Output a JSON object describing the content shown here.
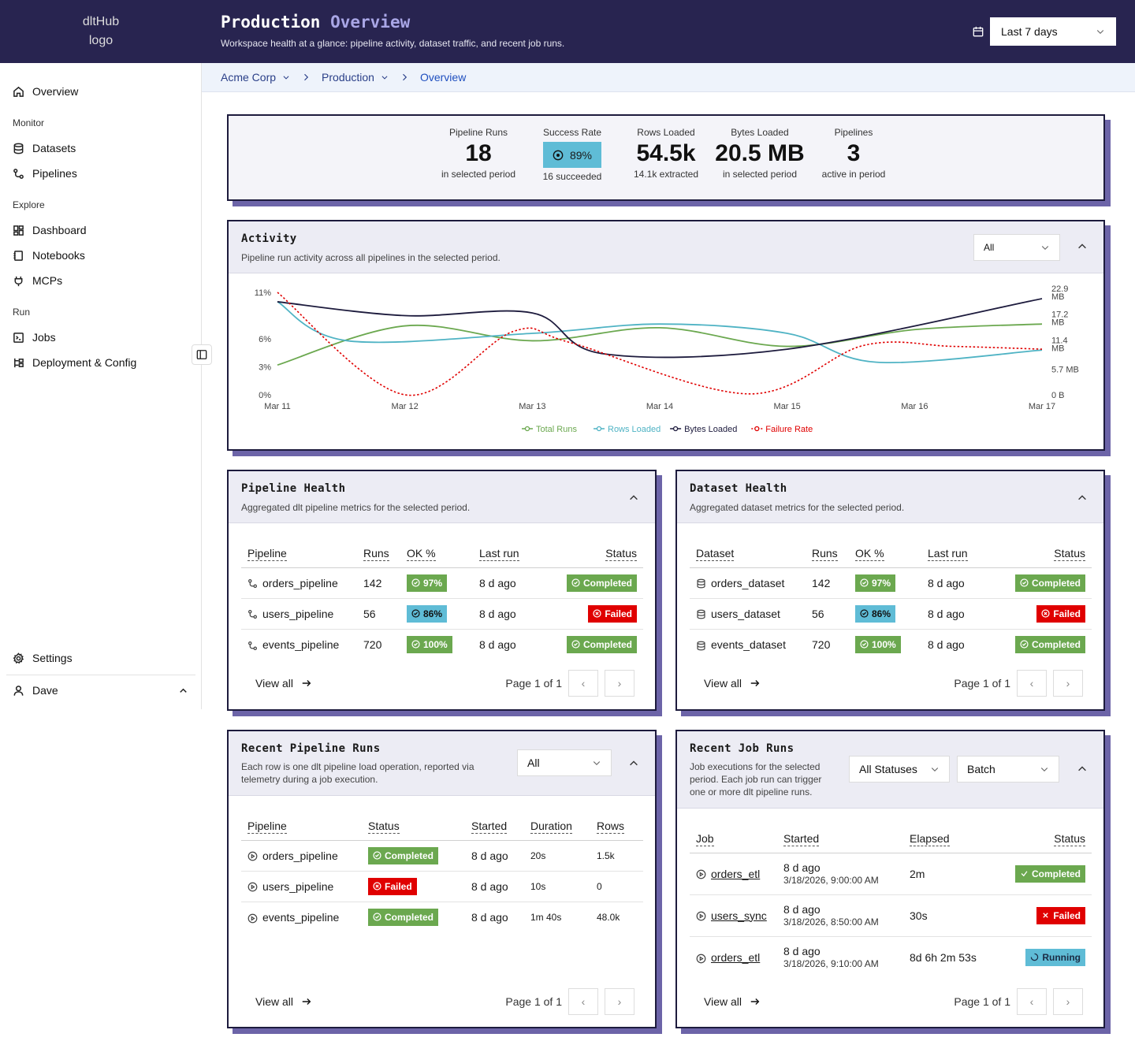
{
  "sidebar": {
    "logo_alt": "dltHub logo",
    "items": [
      {
        "label": "Overview",
        "icon": "home-icon"
      },
      {
        "label": "Datasets",
        "icon": "database-icon"
      },
      {
        "label": "Pipelines",
        "icon": "pipeline-icon"
      },
      {
        "label": "Dashboard",
        "icon": "grid-icon"
      },
      {
        "label": "Notebooks",
        "icon": "notebook-icon"
      },
      {
        "label": "MCPs",
        "icon": "plug-icon"
      },
      {
        "label": "Jobs",
        "icon": "terminal-icon"
      },
      {
        "label": "Deployment & Config",
        "icon": "deploy-icon"
      }
    ],
    "sections": {
      "monitor": "Monitor",
      "explore": "Explore",
      "run": "Run"
    },
    "settings": "Settings",
    "user": "Dave"
  },
  "header": {
    "title_main": "Production",
    "title_accent": "Overview",
    "subtitle": "Workspace health at a glance: pipeline activity, dataset traffic, and recent job runs.",
    "range": "Last 7 days"
  },
  "breadcrumb": {
    "org": "Acme Corp",
    "env": "Production",
    "page": "Overview"
  },
  "kpis": {
    "runs": {
      "label": "Pipeline Runs",
      "value": "18",
      "sub": "in selected period"
    },
    "success": {
      "label": "Success Rate",
      "value": "89%",
      "sub": "16 succeeded"
    },
    "rows": {
      "label": "Rows Loaded",
      "value": "54.5k",
      "sub": "14.1k extracted"
    },
    "bytes": {
      "label": "Bytes Loaded",
      "value": "20.5 MB",
      "sub": "in selected period"
    },
    "pipelines": {
      "label": "Pipelines",
      "value": "3",
      "sub": "active in period"
    }
  },
  "activity": {
    "title": "Activity",
    "subtitle": "Pipeline run activity across all pipelines in the selected period.",
    "filter": "All"
  },
  "chart_data": {
    "type": "line",
    "x": [
      "Mar 11",
      "Mar 12",
      "Mar 13",
      "Mar 14",
      "Mar 15",
      "Mar 16",
      "Mar 17"
    ],
    "left_ticks": [
      "0%",
      "3%",
      "6%",
      "11%"
    ],
    "right_ticks": [
      "0 B",
      "5.7 MB",
      "11.4 MB",
      "17.2 MB",
      "22.9 MB"
    ],
    "ylim_left": [
      0,
      11
    ],
    "ylim_right": [
      0,
      22.9
    ],
    "legend_position": "bottom-center",
    "series": [
      {
        "name": "Total Runs",
        "color": "#6ba84f",
        "axis": "left",
        "dash": false,
        "values": [
          [
            0,
            3.2
          ],
          [
            1,
            7.4
          ],
          [
            2,
            5.8
          ],
          [
            3,
            7.2
          ],
          [
            4,
            5.2
          ],
          [
            5,
            7.0
          ],
          [
            6,
            7.6
          ]
        ]
      },
      {
        "name": "Rows Loaded",
        "color": "#4fb3c4",
        "axis": "left",
        "dash": false,
        "values": [
          [
            0,
            10.0
          ],
          [
            0.55,
            5.8
          ],
          [
            2,
            6.6
          ],
          [
            3,
            7.6
          ],
          [
            4,
            6.6
          ],
          [
            4.7,
            3.5
          ],
          [
            6,
            4.8
          ]
        ]
      },
      {
        "name": "Bytes Loaded",
        "color": "#1d1b3d",
        "axis": "right",
        "dash": false,
        "values": [
          [
            0,
            20.8
          ],
          [
            1,
            17.7
          ],
          [
            2,
            18.3
          ],
          [
            2.55,
            9.2
          ],
          [
            4,
            10.2
          ],
          [
            6,
            21.5
          ]
        ]
      },
      {
        "name": "Failure Rate",
        "color": "#e00000",
        "axis": "left",
        "dash": true,
        "values": [
          [
            0,
            11.0
          ],
          [
            1,
            0
          ],
          [
            1.85,
            6.8
          ],
          [
            2.3,
            5.6
          ],
          [
            3.7,
            0.1
          ],
          [
            4.6,
            5.3
          ],
          [
            5.3,
            5.2
          ],
          [
            6,
            4.9
          ]
        ]
      }
    ]
  },
  "pipeline_health": {
    "title": "Pipeline Health",
    "subtitle": "Aggregated dlt pipeline metrics for the selected period.",
    "headers": [
      "Pipeline",
      "Runs",
      "OK %",
      "Last run",
      "Status"
    ],
    "rows": [
      {
        "name": "orders_pipeline",
        "runs": "142",
        "ok": "97%",
        "last": "8 d ago",
        "status": "Completed"
      },
      {
        "name": "users_pipeline",
        "runs": "56",
        "ok": "86%",
        "last": "8 d ago",
        "status": "Failed"
      },
      {
        "name": "events_pipeline",
        "runs": "720",
        "ok": "100%",
        "last": "8 d ago",
        "status": "Completed"
      }
    ],
    "view_all": "View all",
    "page": "Page 1 of 1"
  },
  "dataset_health": {
    "title": "Dataset Health",
    "subtitle": "Aggregated dataset metrics for the selected period.",
    "headers": [
      "Dataset",
      "Runs",
      "OK %",
      "Last run",
      "Status"
    ],
    "rows": [
      {
        "name": "orders_dataset",
        "runs": "142",
        "ok": "97%",
        "last": "8 d ago",
        "status": "Completed"
      },
      {
        "name": "users_dataset",
        "runs": "56",
        "ok": "86%",
        "last": "8 d ago",
        "status": "Failed"
      },
      {
        "name": "events_dataset",
        "runs": "720",
        "ok": "100%",
        "last": "8 d ago",
        "status": "Completed"
      }
    ],
    "view_all": "View all",
    "page": "Page 1 of 1"
  },
  "recent_pipeline_runs": {
    "title": "Recent Pipeline Runs",
    "subtitle": "Each row is one dlt pipeline load operation, reported via telemetry during a job execution.",
    "filter": "All",
    "headers": [
      "Pipeline",
      "Status",
      "Started",
      "Duration",
      "Rows"
    ],
    "rows": [
      {
        "name": "orders_pipeline",
        "status": "Completed",
        "started": "8 d ago",
        "duration": "20s",
        "rows": "1.5k"
      },
      {
        "name": "users_pipeline",
        "status": "Failed",
        "started": "8 d ago",
        "duration": "10s",
        "rows": "0"
      },
      {
        "name": "events_pipeline",
        "status": "Completed",
        "started": "8 d ago",
        "duration": "1m 40s",
        "rows": "48.0k"
      }
    ],
    "view_all": "View all",
    "page": "Page 1 of 1"
  },
  "recent_job_runs": {
    "title": "Recent Job Runs",
    "subtitle": "Job executions for the selected period. Each job run can trigger one or more dlt pipeline runs.",
    "status_filter": "All Statuses",
    "type_filter": "Batch",
    "headers": [
      "Job",
      "Started",
      "Elapsed",
      "Status"
    ],
    "rows": [
      {
        "name": "orders_etl",
        "started": "8 d ago",
        "time": "3/18/2026, 9:00:00 AM",
        "elapsed": "2m",
        "status": "Completed"
      },
      {
        "name": "users_sync",
        "started": "8 d ago",
        "time": "3/18/2026, 8:50:00 AM",
        "elapsed": "30s",
        "status": "Failed"
      },
      {
        "name": "orders_etl",
        "started": "8 d ago",
        "time": "3/18/2026, 9:10:00 AM",
        "elapsed": "8d 6h 2m 53s",
        "status": "Running"
      }
    ],
    "view_all": "View all",
    "page": "Page 1 of 1"
  }
}
